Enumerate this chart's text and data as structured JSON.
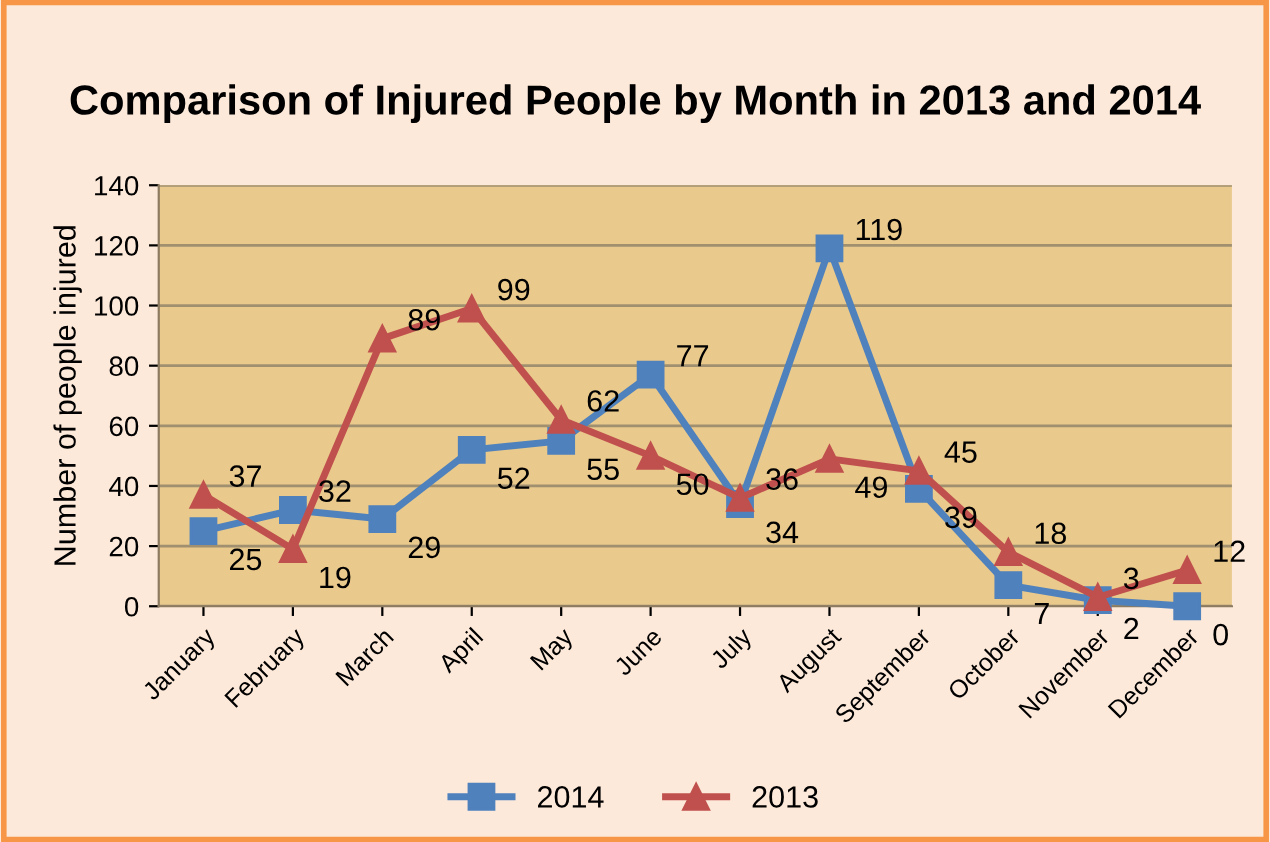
{
  "chart_data": {
    "type": "line",
    "title": "Comparison of Injured People by Month in 2013 and 2014",
    "ylabel": "Number of people injured",
    "categories": [
      "January",
      "February",
      "March",
      "April",
      "May",
      "June",
      "July",
      "August",
      "September",
      "October",
      "November",
      "December"
    ],
    "series": [
      {
        "name": "2014",
        "color": "#4f81bd",
        "marker": "square",
        "values": [
          25,
          32,
          29,
          52,
          55,
          77,
          34,
          119,
          39,
          7,
          2,
          0
        ]
      },
      {
        "name": "2013",
        "color": "#c0504d",
        "marker": "triangle",
        "values": [
          37,
          19,
          89,
          99,
          62,
          50,
          36,
          49,
          45,
          18,
          3,
          12
        ]
      }
    ],
    "ylim": [
      0,
      140
    ],
    "yticks": [
      0,
      20,
      40,
      60,
      80,
      100,
      120,
      140
    ],
    "grid": "y",
    "legend": "bottom",
    "data_labels": true,
    "line_style": "solid"
  }
}
